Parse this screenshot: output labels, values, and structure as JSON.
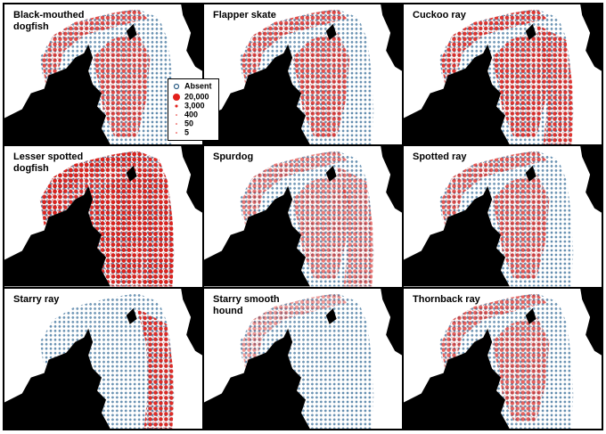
{
  "panels": [
    {
      "title": "Black-mouthed dogfish"
    },
    {
      "title": "Flapper skate"
    },
    {
      "title": "Cuckoo ray"
    },
    {
      "title": "Lesser spotted dogfish"
    },
    {
      "title": "Spurdog"
    },
    {
      "title": "Spotted ray"
    },
    {
      "title": "Starry ray"
    },
    {
      "title": "Starry smooth hound"
    },
    {
      "title": "Thornback ray"
    }
  ],
  "legend": {
    "absent": "Absent",
    "items": [
      {
        "value": 20000,
        "label": "20,000"
      },
      {
        "value": 3000,
        "label": "3,000"
      },
      {
        "value": 400,
        "label": "400"
      },
      50,
      5
    ]
  }
}
